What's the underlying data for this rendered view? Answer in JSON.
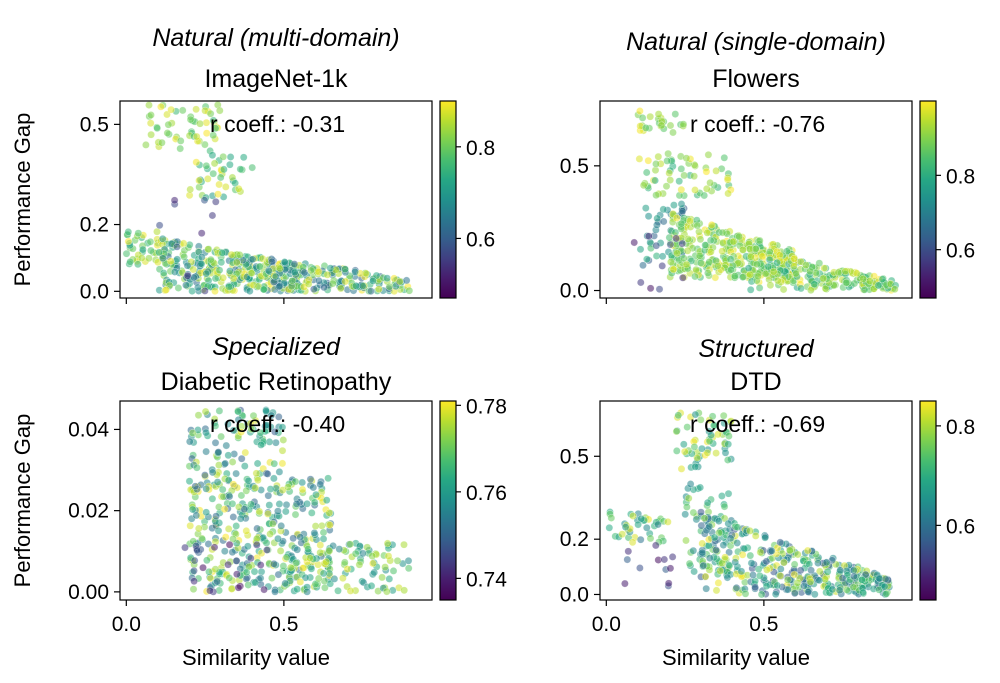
{
  "figure": {
    "xlabel": "Similarity value",
    "ylabel": "Performance Gap",
    "annotation_prefix": "r coeff.: ",
    "colormap": "viridis"
  },
  "chart_data": [
    {
      "type": "scatter",
      "category": "Natural (multi-domain)",
      "title": "ImageNet-1k",
      "r_coeff": "-0.31",
      "xlim": [
        -0.02,
        0.97
      ],
      "ylim": [
        -0.02,
        0.57
      ],
      "yticks": [
        0.0,
        0.2,
        0.5
      ],
      "ytick_labels": [
        "0.0",
        "0.2",
        "0.5"
      ],
      "xticks": [
        0.0,
        0.5
      ],
      "xtick_labels": [
        "",
        ""
      ],
      "color_range": [
        0.47,
        0.9
      ],
      "cticks": [
        0.6,
        0.8
      ],
      "ctick_labels": [
        "0.6",
        "0.8"
      ],
      "clusters": [
        {
          "n": 55,
          "x": [
            0.05,
            0.3
          ],
          "y": [
            0.42,
            0.56
          ],
          "c": [
            0.75,
            0.9
          ]
        },
        {
          "n": 40,
          "x": [
            0.2,
            0.4
          ],
          "y": [
            0.28,
            0.42
          ],
          "c": [
            0.7,
            0.9
          ]
        },
        {
          "n": 40,
          "x": [
            0.0,
            0.12
          ],
          "y": [
            0.08,
            0.18
          ],
          "c": [
            0.72,
            0.9
          ]
        },
        {
          "n": 340,
          "x": [
            0.1,
            0.55
          ],
          "y": [
            0.0,
            0.16
          ],
          "c": [
            0.62,
            0.9
          ],
          "decay": 0.5
        },
        {
          "n": 160,
          "x": [
            0.45,
            0.9
          ],
          "y": [
            0.0,
            0.1
          ],
          "c": [
            0.6,
            0.9
          ],
          "decay": 0.6
        },
        {
          "n": 12,
          "x": [
            0.03,
            0.3
          ],
          "y": [
            0.0,
            0.28
          ],
          "c": [
            0.52,
            0.66
          ]
        }
      ]
    },
    {
      "type": "scatter",
      "category": "Natural (single-domain)",
      "title": "Flowers",
      "r_coeff": "-0.76",
      "xlim": [
        -0.02,
        0.97
      ],
      "ylim": [
        -0.03,
        0.76
      ],
      "yticks": [
        0.0,
        0.5
      ],
      "ytick_labels": [
        "0.0",
        "0.5"
      ],
      "xticks": [
        0.0,
        0.5
      ],
      "xtick_labels": [
        "",
        ""
      ],
      "color_range": [
        0.47,
        1.0
      ],
      "cticks": [
        0.6,
        0.8
      ],
      "ctick_labels": [
        "0.6",
        "0.8"
      ],
      "clusters": [
        {
          "n": 25,
          "x": [
            0.1,
            0.25
          ],
          "y": [
            0.63,
            0.72
          ],
          "c": [
            0.85,
            1.0
          ]
        },
        {
          "n": 60,
          "x": [
            0.1,
            0.4
          ],
          "y": [
            0.38,
            0.55
          ],
          "c": [
            0.8,
            1.0
          ]
        },
        {
          "n": 40,
          "x": [
            0.1,
            0.25
          ],
          "y": [
            0.1,
            0.35
          ],
          "c": [
            0.6,
            0.85
          ]
        },
        {
          "n": 330,
          "x": [
            0.2,
            0.6
          ],
          "y": [
            0.05,
            0.32
          ],
          "c": [
            0.82,
            1.0
          ],
          "decay": 0.6
        },
        {
          "n": 220,
          "x": [
            0.45,
            0.92
          ],
          "y": [
            0.0,
            0.18
          ],
          "c": [
            0.78,
            1.0
          ],
          "decay": 0.8
        },
        {
          "n": 10,
          "x": [
            0.08,
            0.25
          ],
          "y": [
            0.0,
            0.22
          ],
          "c": [
            0.5,
            0.6
          ]
        }
      ]
    },
    {
      "type": "scatter",
      "category": "Specialized",
      "title": "Diabetic Retinopathy",
      "r_coeff": "-0.40",
      "xlim": [
        -0.02,
        0.97
      ],
      "ylim": [
        -0.002,
        0.047
      ],
      "yticks": [
        0.0,
        0.02,
        0.04
      ],
      "ytick_labels": [
        "0.00",
        "0.02",
        "0.04"
      ],
      "xticks": [
        0.0,
        0.5
      ],
      "xtick_labels": [
        "0.0",
        "0.5"
      ],
      "color_range": [
        0.735,
        0.781
      ],
      "cticks": [
        0.74,
        0.76,
        0.78
      ],
      "ctick_labels": [
        "0.74",
        "0.76",
        "0.78"
      ],
      "clusters": [
        {
          "n": 120,
          "x": [
            0.2,
            0.5
          ],
          "y": [
            0.025,
            0.045
          ],
          "c": [
            0.748,
            0.781
          ]
        },
        {
          "n": 330,
          "x": [
            0.2,
            0.65
          ],
          "y": [
            0.0,
            0.028
          ],
          "c": [
            0.75,
            0.781
          ]
        },
        {
          "n": 110,
          "x": [
            0.5,
            0.9
          ],
          "y": [
            0.0,
            0.012
          ],
          "c": [
            0.755,
            0.781
          ]
        },
        {
          "n": 25,
          "x": [
            0.18,
            0.45
          ],
          "y": [
            0.0,
            0.012
          ],
          "c": [
            0.736,
            0.75
          ]
        }
      ]
    },
    {
      "type": "scatter",
      "category": "Structured",
      "title": "DTD",
      "r_coeff": "-0.69",
      "xlim": [
        -0.02,
        0.97
      ],
      "ylim": [
        -0.02,
        0.7
      ],
      "yticks": [
        0.0,
        0.2,
        0.5
      ],
      "ytick_labels": [
        "0.0",
        "0.2",
        "0.5"
      ],
      "xticks": [
        0.0,
        0.5
      ],
      "xtick_labels": [
        "0.0",
        "0.5"
      ],
      "color_range": [
        0.45,
        0.85
      ],
      "cticks": [
        0.6,
        0.8
      ],
      "ctick_labels": [
        "0.6",
        "0.8"
      ],
      "clusters": [
        {
          "n": 40,
          "x": [
            0.0,
            0.2
          ],
          "y": [
            0.18,
            0.3
          ],
          "c": [
            0.6,
            0.85
          ]
        },
        {
          "n": 60,
          "x": [
            0.22,
            0.4
          ],
          "y": [
            0.45,
            0.66
          ],
          "c": [
            0.65,
            0.85
          ]
        },
        {
          "n": 60,
          "x": [
            0.25,
            0.4
          ],
          "y": [
            0.08,
            0.4
          ],
          "c": [
            0.6,
            0.8
          ]
        },
        {
          "n": 380,
          "x": [
            0.3,
            0.9
          ],
          "y": [
            0.0,
            0.3
          ],
          "c": [
            0.55,
            0.85
          ],
          "decay": 0.8
        },
        {
          "n": 12,
          "x": [
            0.03,
            0.3
          ],
          "y": [
            0.0,
            0.18
          ],
          "c": [
            0.46,
            0.58
          ]
        }
      ]
    }
  ]
}
